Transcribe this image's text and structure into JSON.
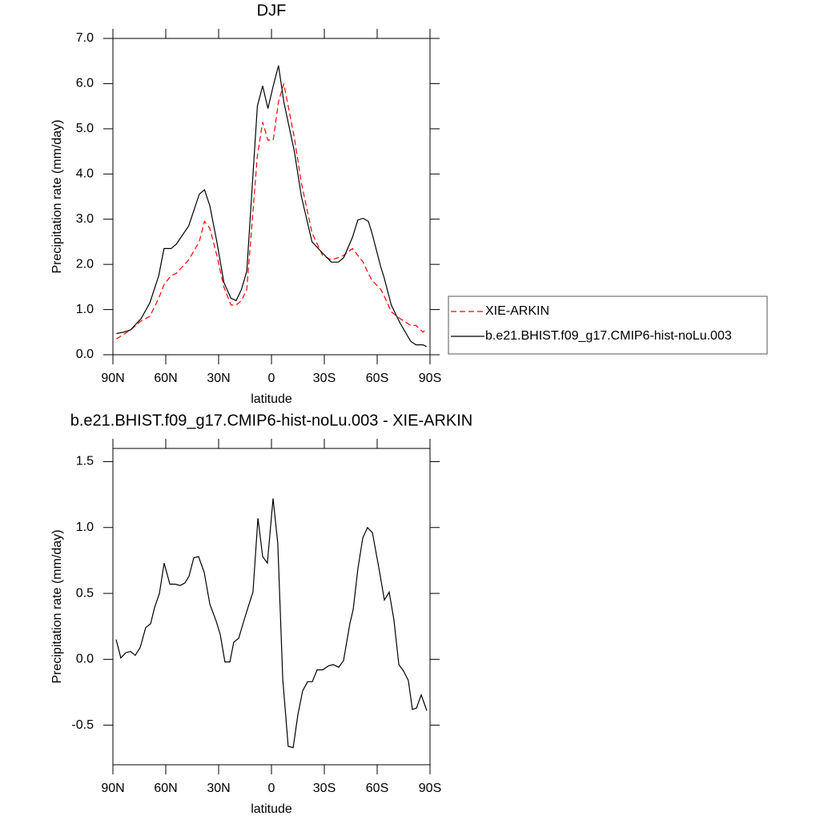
{
  "chart_data": [
    {
      "type": "line",
      "title": "DJF",
      "x_label": "latitude",
      "y_label": "Precipitation rate (mm/day)",
      "xlim": [
        90,
        -90
      ],
      "xticks": [
        {
          "value": 90,
          "label": "90N"
        },
        {
          "value": 60,
          "label": "60N"
        },
        {
          "value": 30,
          "label": "30N"
        },
        0,
        {
          "value": -30,
          "label": "30S"
        },
        {
          "value": -60,
          "label": "60S"
        },
        {
          "value": -90,
          "label": "90S"
        }
      ],
      "ylim": [
        0,
        7
      ],
      "yticks": [
        {
          "value": 0,
          "label": "0.0"
        },
        {
          "value": 1,
          "label": "1.0"
        },
        {
          "value": 2,
          "label": "2.0"
        },
        {
          "value": 3,
          "label": "3.0"
        },
        {
          "value": 4,
          "label": "4.0"
        },
        {
          "value": 5,
          "label": "5.0"
        },
        {
          "value": 6,
          "label": "6.0"
        },
        {
          "value": 7,
          "label": "7.0"
        }
      ],
      "legend": "right",
      "x": [
        88,
        84,
        80,
        74,
        69,
        64,
        61,
        57,
        54,
        47,
        41,
        38,
        35,
        31,
        27,
        23,
        20,
        17,
        14,
        8,
        5,
        2,
        -1,
        -4,
        -7,
        -13,
        -17,
        -23,
        -29,
        -34,
        -38,
        -41,
        -46,
        -49,
        -52,
        -55,
        -57,
        -62,
        -64,
        -68,
        -73,
        -79,
        -82,
        -86,
        -88
      ],
      "series": [
        {
          "name": "XIE-ARKIN",
          "color": "#ff0000",
          "dash": true,
          "values": [
            0.35,
            0.45,
            0.55,
            0.75,
            0.85,
            1.25,
            1.55,
            1.75,
            1.8,
            2.1,
            2.5,
            2.95,
            2.8,
            2.2,
            1.5,
            1.1,
            1.1,
            1.2,
            1.45,
            4.4,
            5.15,
            4.75,
            4.75,
            5.6,
            6.0,
            4.8,
            3.8,
            2.7,
            2.2,
            2.1,
            2.15,
            2.2,
            2.35,
            2.2,
            2.05,
            1.8,
            1.65,
            1.45,
            1.3,
            0.95,
            0.8,
            0.65,
            0.65,
            0.5,
            0.58
          ]
        },
        {
          "name": "b.e21.BHIST.f09_g17.CMIP6-hist-noLu.003",
          "color": "#000000",
          "dash": false,
          "values": [
            0.47,
            0.5,
            0.55,
            0.8,
            1.15,
            1.75,
            2.35,
            2.35,
            2.45,
            2.85,
            3.55,
            3.65,
            3.3,
            2.5,
            1.6,
            1.25,
            1.2,
            1.45,
            1.85,
            5.5,
            5.95,
            5.45,
            5.95,
            6.4,
            5.6,
            4.5,
            3.5,
            2.5,
            2.25,
            2.05,
            2.05,
            2.15,
            2.6,
            2.98,
            3.02,
            2.95,
            2.7,
            1.95,
            1.7,
            1.1,
            0.7,
            0.3,
            0.22,
            0.22,
            0.18
          ]
        }
      ]
    },
    {
      "type": "line",
      "title": "b.e21.BHIST.f09_g17.CMIP6-hist-noLu.003 - XIE-ARKIN",
      "x_label": "latitude",
      "y_label": "Precipitation rate (mm/day)",
      "xlim": [
        90,
        -90
      ],
      "xticks": [
        {
          "value": 90,
          "label": "90N"
        },
        {
          "value": 60,
          "label": "60N"
        },
        {
          "value": 30,
          "label": "30N"
        },
        0,
        {
          "value": -30,
          "label": "30S"
        },
        {
          "value": -60,
          "label": "60S"
        },
        {
          "value": -90,
          "label": "90S"
        }
      ],
      "ylim": [
        -0.8,
        1.6
      ],
      "yticks": [
        -0.5,
        {
          "value": 0,
          "label": "0.0"
        },
        0.5,
        {
          "value": 1,
          "label": "1.0"
        },
        1.5
      ],
      "color": "#000000",
      "x": [
        88.2,
        85.5,
        82.7,
        80,
        77.3,
        74.5,
        71.4,
        68.6,
        66.4,
        63.6,
        60.9,
        57.7,
        54.5,
        51.8,
        49.1,
        46.8,
        44.1,
        41.4,
        38.2,
        35,
        31.4,
        29.1,
        26.4,
        23.6,
        21.4,
        18.6,
        15.5,
        12.7,
        10.5,
        7.7,
        5,
        2.3,
        -0.9,
        -3.6,
        -6.4,
        -9.5,
        -12.3,
        -15,
        -17.7,
        -20.5,
        -23.2,
        -25.9,
        -29.1,
        -32.3,
        -35,
        -38.2,
        -40.9,
        -44.5,
        -46.4,
        -49.1,
        -51.8,
        -54.5,
        -57.3,
        -61.4,
        -64.1,
        -66.8,
        -69.5,
        -72.3,
        -75,
        -77.7,
        -80,
        -82.3,
        -85,
        -88.2
      ],
      "values": [
        0.15,
        0.01,
        0.05,
        0.06,
        0.03,
        0.09,
        0.24,
        0.27,
        0.39,
        0.5,
        0.73,
        0.57,
        0.57,
        0.56,
        0.58,
        0.63,
        0.77,
        0.78,
        0.66,
        0.42,
        0.29,
        0.19,
        -0.02,
        -0.02,
        0.13,
        0.16,
        0.3,
        0.42,
        0.51,
        1.07,
        0.78,
        0.73,
        1.22,
        0.88,
        -0.15,
        -0.66,
        -0.67,
        -0.42,
        -0.24,
        -0.17,
        -0.17,
        -0.08,
        -0.08,
        -0.05,
        -0.04,
        -0.06,
        -0.01,
        0.27,
        0.38,
        0.69,
        0.92,
        1.0,
        0.96,
        0.66,
        0.45,
        0.51,
        0.3,
        -0.04,
        -0.09,
        -0.16,
        -0.38,
        -0.37,
        -0.27,
        -0.39
      ]
    }
  ]
}
